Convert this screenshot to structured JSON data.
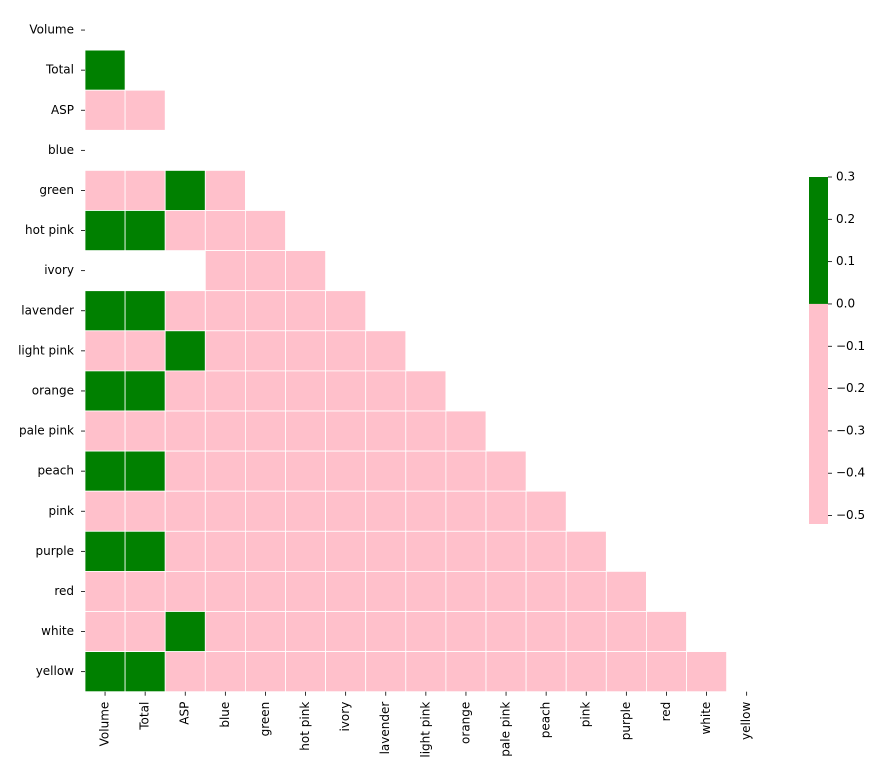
{
  "chart_data": {
    "type": "heatmap",
    "title": "",
    "xlabel": "",
    "ylabel": "",
    "labels": [
      "Volume",
      "Total",
      "ASP",
      "blue",
      "green",
      "hot pink",
      "ivory",
      "lavender",
      "light pink",
      "orange",
      "pale pink",
      "peach",
      "pink",
      "purple",
      "red",
      "white",
      "yellow"
    ],
    "mask": "upper triangle incl. diagonal",
    "matrix": [
      [
        null,
        null,
        null,
        null,
        null,
        null,
        null,
        null,
        null,
        null,
        null,
        null,
        null,
        null,
        null,
        null,
        null
      ],
      [
        0.99,
        null,
        null,
        null,
        null,
        null,
        null,
        null,
        null,
        null,
        null,
        null,
        null,
        null,
        null,
        null,
        null
      ],
      [
        -0.5,
        -0.5,
        null,
        null,
        null,
        null,
        null,
        null,
        null,
        null,
        null,
        null,
        null,
        null,
        null,
        null,
        null
      ],
      [
        null,
        null,
        null,
        null,
        null,
        null,
        null,
        null,
        null,
        null,
        null,
        null,
        null,
        null,
        null,
        null,
        null
      ],
      [
        -0.05,
        -0.05,
        0.3,
        -0.06,
        null,
        null,
        null,
        null,
        null,
        null,
        null,
        null,
        null,
        null,
        null,
        null,
        null
      ],
      [
        0.25,
        0.25,
        -0.1,
        -0.06,
        -0.06,
        null,
        null,
        null,
        null,
        null,
        null,
        null,
        null,
        null,
        null,
        null,
        null
      ],
      [
        null,
        null,
        null,
        -0.06,
        -0.06,
        -0.06,
        null,
        null,
        null,
        null,
        null,
        null,
        null,
        null,
        null,
        null,
        null
      ],
      [
        0.25,
        0.25,
        -0.1,
        -0.06,
        -0.06,
        -0.06,
        -0.06,
        null,
        null,
        null,
        null,
        null,
        null,
        null,
        null,
        null,
        null
      ],
      [
        -0.05,
        -0.05,
        0.3,
        -0.06,
        -0.06,
        -0.06,
        -0.06,
        -0.06,
        null,
        null,
        null,
        null,
        null,
        null,
        null,
        null,
        null
      ],
      [
        0.25,
        0.25,
        -0.1,
        -0.06,
        -0.06,
        -0.06,
        -0.06,
        -0.06,
        -0.06,
        null,
        null,
        null,
        null,
        null,
        null,
        null,
        null
      ],
      [
        -0.05,
        -0.05,
        -0.1,
        -0.06,
        -0.06,
        -0.06,
        -0.06,
        -0.06,
        -0.06,
        -0.06,
        null,
        null,
        null,
        null,
        null,
        null,
        null
      ],
      [
        0.25,
        0.25,
        -0.1,
        -0.06,
        -0.06,
        -0.06,
        -0.06,
        -0.06,
        -0.06,
        -0.06,
        -0.06,
        null,
        null,
        null,
        null,
        null,
        null
      ],
      [
        -0.05,
        -0.05,
        -0.1,
        -0.06,
        -0.06,
        -0.06,
        -0.06,
        -0.06,
        -0.06,
        -0.06,
        -0.06,
        -0.06,
        null,
        null,
        null,
        null,
        null
      ],
      [
        0.25,
        0.25,
        -0.1,
        -0.06,
        -0.06,
        -0.06,
        -0.06,
        -0.06,
        -0.06,
        -0.06,
        -0.06,
        -0.06,
        -0.06,
        null,
        null,
        null,
        null
      ],
      [
        -0.05,
        -0.05,
        -0.1,
        -0.06,
        -0.06,
        -0.06,
        -0.06,
        -0.06,
        -0.06,
        -0.06,
        -0.06,
        -0.06,
        -0.06,
        -0.06,
        null,
        null,
        null
      ],
      [
        -0.05,
        -0.05,
        0.3,
        -0.06,
        -0.06,
        -0.06,
        -0.06,
        -0.06,
        -0.06,
        -0.06,
        -0.06,
        -0.06,
        -0.06,
        -0.06,
        -0.06,
        null,
        null
      ],
      [
        0.25,
        0.25,
        -0.1,
        -0.06,
        -0.06,
        -0.06,
        -0.06,
        -0.06,
        -0.06,
        -0.06,
        -0.06,
        -0.06,
        -0.06,
        -0.06,
        -0.06,
        -0.06,
        null
      ]
    ],
    "colorscale": {
      "vmin": -0.52,
      "vmax": 0.3,
      "threshold": 0.0,
      "negative_color": "#ffc0cb",
      "positive_color": "#008000",
      "ticks": [
        "0.3",
        "0.2",
        "0.1",
        "0.0",
        "−0.1",
        "−0.2",
        "−0.3",
        "−0.4",
        "−0.5"
      ]
    },
    "grid_line_color": "#ffffff"
  }
}
